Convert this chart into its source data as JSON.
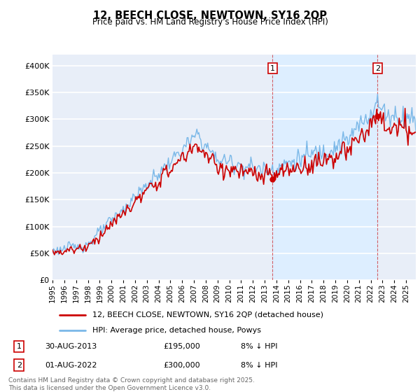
{
  "title": "12, BEECH CLOSE, NEWTOWN, SY16 2QP",
  "subtitle": "Price paid vs. HM Land Registry's House Price Index (HPI)",
  "ylim": [
    0,
    420000
  ],
  "xlim_start": 1995.0,
  "xlim_end": 2025.83,
  "hpi_color": "#7ab8e8",
  "price_color": "#cc0000",
  "vline_color": "#cc0000",
  "highlight_color": "#ddeeff",
  "background_color": "#e8eef8",
  "grid_color": "#ffffff",
  "legend_label_price": "12, BEECH CLOSE, NEWTOWN, SY16 2QP (detached house)",
  "legend_label_hpi": "HPI: Average price, detached house, Powys",
  "sale1_date": 2013.667,
  "sale1_price": 195000,
  "sale1_label": "1",
  "sale2_date": 2022.583,
  "sale2_price": 300000,
  "sale2_label": "2",
  "footnote": "Contains HM Land Registry data © Crown copyright and database right 2025.\nThis data is licensed under the Open Government Licence v3.0."
}
